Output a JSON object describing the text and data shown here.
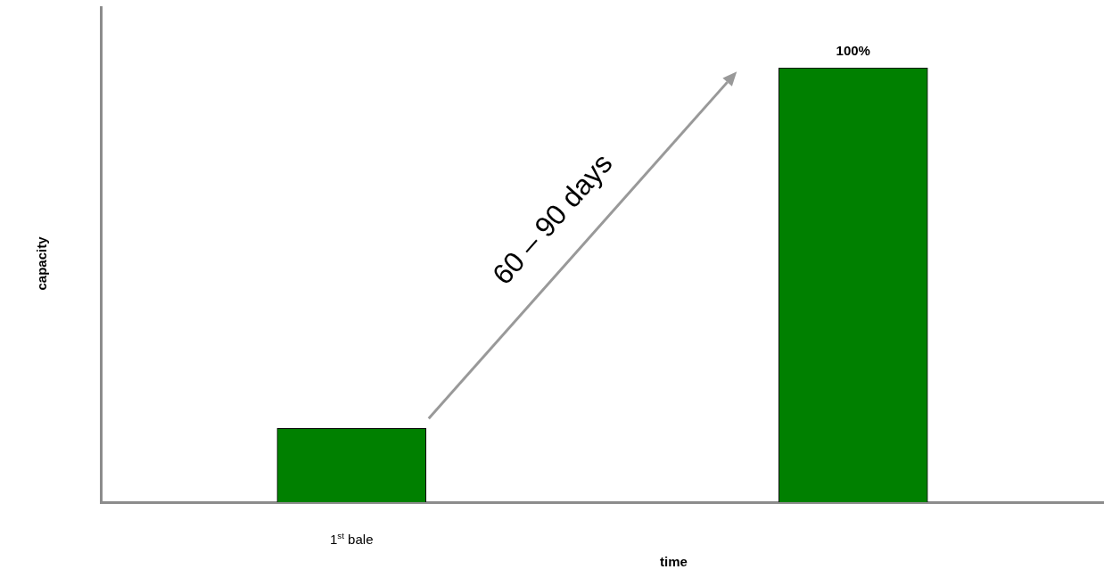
{
  "chart_data": {
    "type": "bar",
    "categories": [
      "1$^{st}$ bale",
      null
    ],
    "values": [
      17,
      100
    ],
    "value_labels": [
      null,
      "100%"
    ],
    "color": "#008000",
    "xlabel": "time",
    "ylabel": "capacity",
    "annotations": [
      "60 – 90 days"
    ]
  }
}
